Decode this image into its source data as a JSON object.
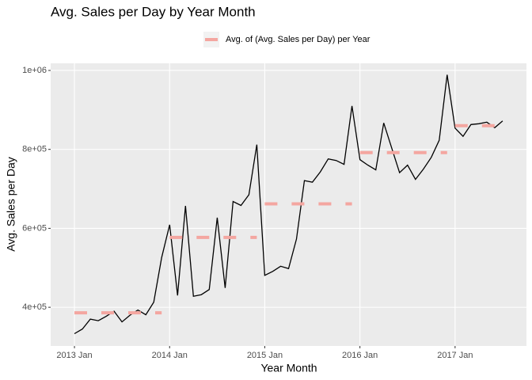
{
  "chart_data": {
    "type": "line",
    "title": "Avg. Sales per Day by Year Month",
    "x_label": "Year Month",
    "y_label": "Avg. Sales per Day",
    "x": [
      "2013-01",
      "2013-02",
      "2013-03",
      "2013-04",
      "2013-05",
      "2013-06",
      "2013-07",
      "2013-08",
      "2013-09",
      "2013-10",
      "2013-11",
      "2013-12",
      "2014-01",
      "2014-02",
      "2014-03",
      "2014-04",
      "2014-05",
      "2014-06",
      "2014-07",
      "2014-08",
      "2014-09",
      "2014-10",
      "2014-11",
      "2014-12",
      "2015-01",
      "2015-02",
      "2015-03",
      "2015-04",
      "2015-05",
      "2015-06",
      "2015-07",
      "2015-08",
      "2015-09",
      "2015-10",
      "2015-11",
      "2015-12",
      "2016-01",
      "2016-02",
      "2016-03",
      "2016-04",
      "2016-05",
      "2016-06",
      "2016-07",
      "2016-08",
      "2016-09",
      "2016-10",
      "2016-11",
      "2016-12",
      "2017-01",
      "2017-02",
      "2017-03",
      "2017-04",
      "2017-05",
      "2017-06",
      "2017-07"
    ],
    "series": [
      {
        "color": "#000000",
        "values": [
          333000,
          345000,
          370000,
          366000,
          377000,
          390000,
          363000,
          380000,
          393000,
          381000,
          413000,
          526000,
          609000,
          430000,
          657000,
          428000,
          432000,
          445000,
          627000,
          449000,
          668000,
          658000,
          685000,
          812000,
          481000,
          491000,
          504000,
          498000,
          573000,
          721000,
          717000,
          743000,
          776000,
          772000,
          762000,
          910000,
          774000,
          760000,
          748000,
          867000,
          804000,
          741000,
          760000,
          724000,
          750000,
          780000,
          823000,
          989000,
          854000,
          833000,
          863000,
          865000,
          869000,
          855000,
          872000
        ]
      },
      {
        "name": "Avg. of (Avg. Sales per Day) per Year",
        "color": "#f4a6a0",
        "dashed": true,
        "values": [
          386000,
          386000,
          386000,
          386000,
          386000,
          386000,
          386000,
          386000,
          386000,
          386000,
          386000,
          386000,
          577000,
          577000,
          577000,
          577000,
          577000,
          577000,
          577000,
          577000,
          577000,
          577000,
          577000,
          577000,
          662000,
          662000,
          662000,
          662000,
          662000,
          662000,
          662000,
          662000,
          662000,
          662000,
          662000,
          662000,
          792000,
          792000,
          792000,
          792000,
          792000,
          792000,
          792000,
          792000,
          792000,
          792000,
          792000,
          792000,
          860000,
          860000,
          860000,
          860000,
          860000,
          860000,
          860000
        ]
      }
    ],
    "xlim": [
      "2012-10",
      "2017-10"
    ],
    "xticks": [
      {
        "value": "2013-01",
        "label": "2013 Jan"
      },
      {
        "value": "2014-01",
        "label": "2014 Jan"
      },
      {
        "value": "2015-01",
        "label": "2015 Jan"
      },
      {
        "value": "2016-01",
        "label": "2016 Jan"
      },
      {
        "value": "2017-01",
        "label": "2017 Jan"
      }
    ],
    "ylim": [
      302000,
      1018000
    ],
    "yticks": [
      {
        "value": 400000,
        "label": "4e+05"
      },
      {
        "value": 600000,
        "label": "6e+05"
      },
      {
        "value": 800000,
        "label": "8e+05"
      },
      {
        "value": 1000000,
        "label": "1e+06"
      }
    ],
    "grid": true,
    "legend_position": "top"
  }
}
